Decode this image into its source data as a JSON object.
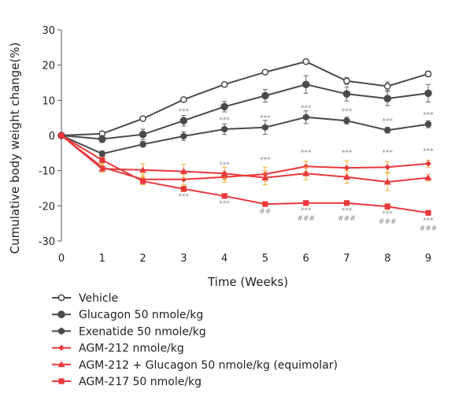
{
  "chart_data": {
    "type": "line",
    "xlabel": "Time (Weeks)",
    "ylabel": "Cumulative body weight change(%)",
    "x": [
      0,
      1,
      2,
      3,
      4,
      5,
      6,
      7,
      8,
      9
    ],
    "xlim": [
      0,
      9
    ],
    "ylim": [
      -30,
      30
    ],
    "yticks": [
      30,
      20,
      10,
      0,
      -10,
      -20,
      -30
    ],
    "grid": false,
    "legend_position": "bottom",
    "series": [
      {
        "name": "Vehicle",
        "color": "#4a4a4a",
        "marker": "circle-open",
        "values": [
          0,
          0.5,
          4.8,
          10.2,
          14.5,
          18,
          21,
          15.5,
          14,
          17.5
        ],
        "errors": [
          0,
          0.3,
          0.4,
          0.5,
          0.5,
          0.6,
          0.6,
          1.0,
          1.2,
          0.8
        ]
      },
      {
        "name": "Glucagon 50 nmole/kg",
        "color": "#4a4a4a",
        "marker": "circle",
        "values": [
          0,
          -1,
          0.3,
          4.2,
          8.2,
          11.3,
          14.5,
          11.8,
          10.5,
          12
        ],
        "errors": [
          0,
          1.0,
          1.5,
          1.5,
          1.5,
          1.8,
          2.5,
          2.0,
          2.0,
          2.5
        ]
      },
      {
        "name": "Exenatide 50 nmole/kg",
        "color": "#4a4a4a",
        "marker": "hexagon",
        "values": [
          0,
          -5.2,
          -2.5,
          -0.2,
          1.8,
          2.3,
          5.2,
          4.2,
          1.5,
          3.2
        ],
        "errors": [
          0,
          0.8,
          0.8,
          1.2,
          1.5,
          2.0,
          1.8,
          1.0,
          0.8,
          1.0
        ]
      },
      {
        "name": "AGM-212 nmole/kg",
        "color": "#e8393c",
        "marker": "diamond",
        "values": [
          0,
          -9,
          -12.5,
          -12.5,
          -11.8,
          -11,
          -8.8,
          -9.2,
          -9,
          -8
        ],
        "errors": [
          0,
          1.0,
          1.5,
          1.5,
          1.5,
          2.0,
          1.5,
          2.0,
          1.5,
          1.0
        ]
      },
      {
        "name": "AGM-212 + Glucagon 50 nmole/kg (equimolar)",
        "color": "#e8393c",
        "marker": "triangle",
        "values": [
          0,
          -9.5,
          -9.8,
          -10.2,
          -10.8,
          -12,
          -10.8,
          -11.8,
          -13.2,
          -12
        ],
        "errors": [
          0,
          1.0,
          1.8,
          2.0,
          1.8,
          2.0,
          1.8,
          1.8,
          2.5,
          1.0
        ]
      },
      {
        "name": "AGM-217 50 nmole/kg",
        "color": "#e8393c",
        "marker": "square",
        "values": [
          0,
          -7,
          -13,
          -15.2,
          -17.2,
          -19.5,
          -19.2,
          -19.2,
          -20.2,
          -22
        ],
        "errors": [
          0,
          0.8,
          1.0,
          0.8,
          0.5,
          0.6,
          0.6,
          0.6,
          0.8,
          0.5
        ]
      }
    ],
    "annotations": [
      {
        "x": 3,
        "y": 4.2,
        "text": "***",
        "pos": "above"
      },
      {
        "x": 3,
        "y": -15.2,
        "text": "***",
        "pos": "below"
      },
      {
        "x": 4,
        "y": 1.8,
        "text": "***",
        "pos": "above"
      },
      {
        "x": 4,
        "y": -11,
        "text": "***",
        "pos": "above"
      },
      {
        "x": 4,
        "y": -17.2,
        "text": "***",
        "pos": "below"
      },
      {
        "x": 5,
        "y": 2.3,
        "text": "***",
        "pos": "above"
      },
      {
        "x": 5,
        "y": -9.5,
        "text": "***",
        "pos": "above"
      },
      {
        "x": 5,
        "y": -19.5,
        "text": "##",
        "pos": "below"
      },
      {
        "x": 6,
        "y": 5.2,
        "text": "***",
        "pos": "above"
      },
      {
        "x": 6,
        "y": -7.5,
        "text": "***",
        "pos": "above"
      },
      {
        "x": 6,
        "y": -19.2,
        "text": "***",
        "pos": "below"
      },
      {
        "x": 6,
        "y": -19.2,
        "text": "###",
        "pos": "below2"
      },
      {
        "x": 7,
        "y": 4.2,
        "text": "***",
        "pos": "above"
      },
      {
        "x": 7,
        "y": -7.5,
        "text": "***",
        "pos": "above"
      },
      {
        "x": 7,
        "y": -19.2,
        "text": "***",
        "pos": "below"
      },
      {
        "x": 7,
        "y": -19.2,
        "text": "###",
        "pos": "below2"
      },
      {
        "x": 8,
        "y": 1.5,
        "text": "***",
        "pos": "above"
      },
      {
        "x": 8,
        "y": -7.5,
        "text": "***",
        "pos": "above"
      },
      {
        "x": 8,
        "y": -20.2,
        "text": "***",
        "pos": "below"
      },
      {
        "x": 8,
        "y": -20.2,
        "text": "###",
        "pos": "below2"
      },
      {
        "x": 9,
        "y": 3.2,
        "text": "***",
        "pos": "above"
      },
      {
        "x": 9,
        "y": -7,
        "text": "***",
        "pos": "above"
      },
      {
        "x": 9,
        "y": -22,
        "text": "***",
        "pos": "below"
      },
      {
        "x": 9,
        "y": -22,
        "text": "###",
        "pos": "below2"
      }
    ]
  }
}
